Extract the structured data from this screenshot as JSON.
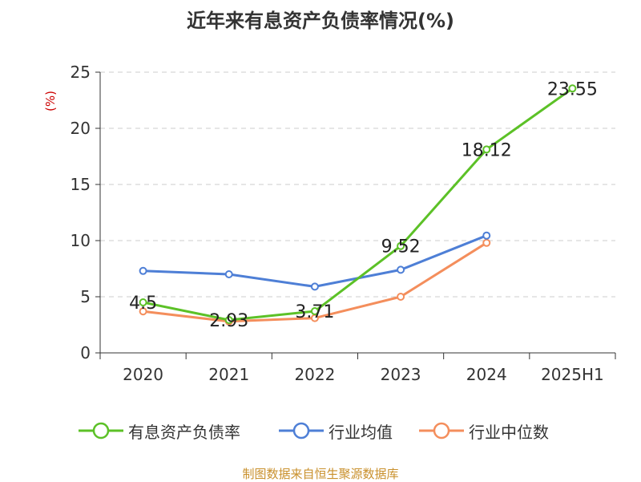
{
  "chart_data": {
    "type": "line",
    "title": "近年来有息资产负债率情况(%)",
    "ylabel": "(%)",
    "categories": [
      "2020",
      "2021",
      "2022",
      "2023",
      "2024",
      "2025H1"
    ],
    "ylim": [
      0,
      25
    ],
    "yticks": [
      0,
      5,
      10,
      15,
      20,
      25
    ],
    "grid": true,
    "legend_position": "bottom",
    "series": [
      {
        "name": "有息资产负债率",
        "color": "#5cc127",
        "values": [
          4.5,
          2.93,
          3.71,
          9.52,
          18.12,
          23.55
        ],
        "labels": [
          "4.5",
          "2.93",
          "3.71",
          "9.52",
          "18.12",
          "23.55"
        ]
      },
      {
        "name": "行业均值",
        "color": "#4e7fd6",
        "values": [
          7.3,
          7.0,
          5.9,
          7.4,
          10.45,
          null
        ]
      },
      {
        "name": "行业中位数",
        "color": "#f48e5c",
        "values": [
          3.7,
          2.8,
          3.1,
          5.0,
          9.8,
          null
        ]
      }
    ],
    "source": "制图数据来自恒生聚源数据库"
  }
}
